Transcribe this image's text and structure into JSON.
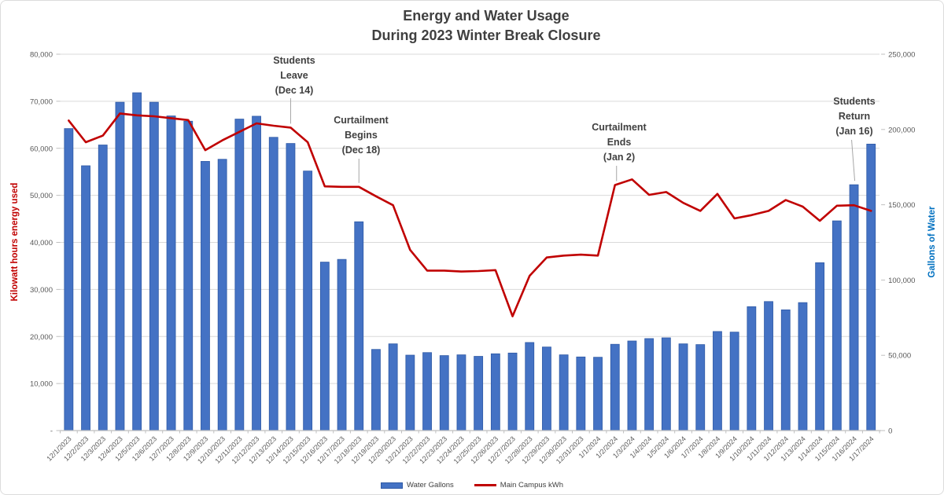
{
  "title": {
    "line1": "Energy and Water Usage",
    "line2": "During 2023 Winter Break Closure"
  },
  "chart_data": {
    "type": "combo",
    "categories": [
      "12/1/2023",
      "12/2/2023",
      "12/3/2023",
      "12/4/2023",
      "12/5/2023",
      "12/6/2023",
      "12/7/2023",
      "12/8/2023",
      "12/9/2023",
      "12/10/2023",
      "12/11/2023",
      "12/12/2023",
      "12/13/2023",
      "12/14/2023",
      "12/15/2023",
      "12/16/2023",
      "12/17/2023",
      "12/18/2023",
      "12/19/2023",
      "12/20/2023",
      "12/21/2023",
      "12/22/2023",
      "12/23/2023",
      "12/24/2023",
      "12/25/2023",
      "12/26/2023",
      "12/27/2023",
      "12/28/2023",
      "12/29/2023",
      "12/30/2023",
      "12/31/2023",
      "1/1/2024",
      "1/2/2024",
      "1/3/2024",
      "1/4/2024",
      "1/5/2024",
      "1/6/2024",
      "1/7/2024",
      "1/8/2024",
      "1/9/2024",
      "1/10/2024",
      "1/11/2024",
      "1/12/2024",
      "1/13/2024",
      "1/14/2024",
      "1/15/2024",
      "1/16/2024",
      "1/17/2024"
    ],
    "series": [
      {
        "name": "Water  Gallons",
        "type": "bar",
        "axis": "right",
        "color": "#4472C4",
        "values": [
          200600,
          175900,
          189700,
          218100,
          224400,
          218100,
          209000,
          205500,
          178800,
          180200,
          206900,
          208800,
          194800,
          190700,
          172400,
          111900,
          113700,
          138700,
          53900,
          57600,
          50100,
          51800,
          49800,
          50300,
          49300,
          51000,
          51500,
          58500,
          55500,
          50300,
          48900,
          48700,
          57300,
          59500,
          61100,
          61600,
          57600,
          57100,
          65800,
          65400,
          82300,
          85700,
          80200,
          85000,
          111500,
          139300,
          163300,
          190300
        ]
      },
      {
        "name": "Main Campus kWh",
        "type": "line",
        "axis": "left",
        "color": "#C00000",
        "values": [
          65900,
          61300,
          62700,
          67400,
          67000,
          66800,
          66400,
          66000,
          59600,
          61700,
          63500,
          65300,
          64800,
          64400,
          61300,
          51900,
          51800,
          51800,
          49800,
          47900,
          38400,
          34000,
          34000,
          33800,
          33900,
          34100,
          24300,
          32900,
          36800,
          37200,
          37400,
          37200,
          52200,
          53400,
          50100,
          50700,
          48400,
          46700,
          50300,
          45100,
          45800,
          46700,
          49000,
          47600,
          44600,
          47800,
          47900,
          46700
        ]
      }
    ],
    "left_axis": {
      "title": "Kilowatt hours energy used",
      "min": 0,
      "max": 80000,
      "step": 10000,
      "color": "#C00000",
      "tick_labels": [
        "80,000",
        "70,000",
        "60,000",
        "50,000",
        "40,000",
        "30,000",
        "20,000",
        "10,000",
        "-"
      ]
    },
    "right_axis": {
      "title": "Gallons of Water",
      "min": 0,
      "max": 250000,
      "step": 50000,
      "color": "#0070C0",
      "tick_labels": [
        "250,000",
        "200,000",
        "150,000",
        "100,000",
        "50,000",
        "0"
      ]
    },
    "grid": "horizontal",
    "legend_position": "bottom",
    "annotations": [
      {
        "line1": "Students",
        "line2": "Leave",
        "line3": "(Dec 14)",
        "category": "12/14/2023",
        "category_index": 13,
        "target_series": "Main Campus kWh"
      },
      {
        "line1": "Curtailment",
        "line2": "Begins",
        "line3": "(Dec 18)",
        "category": "12/18/2023",
        "category_index": 17,
        "target_series": "Main Campus kWh"
      },
      {
        "line1": "Curtailment",
        "line2": "Ends",
        "line3": "(Jan 2)",
        "category": "1/2/2024",
        "category_index": 32,
        "target_series": "Main Campus kWh"
      },
      {
        "line1": "Students",
        "line2": "Return",
        "line3": "(Jan 16)",
        "category": "1/16/2024",
        "category_index": 46,
        "target_series": "Water  Gallons"
      }
    ]
  }
}
